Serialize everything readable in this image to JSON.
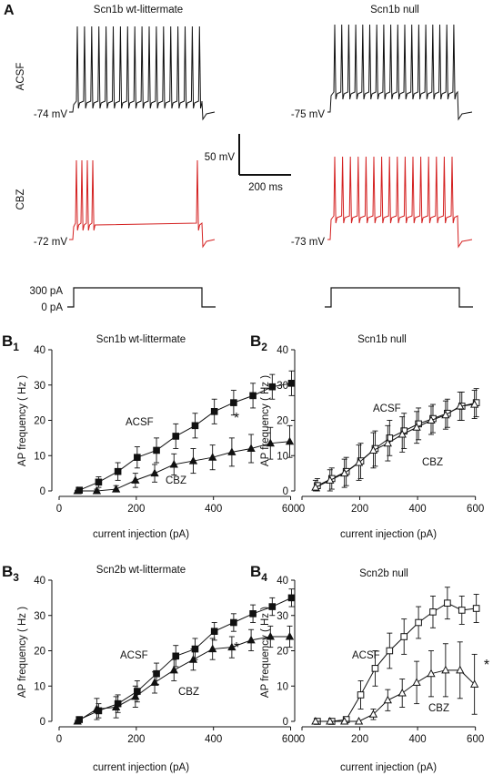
{
  "panel_a": {
    "label": "A",
    "titles": [
      "Scn1b wt-littermate",
      "Scn1b null"
    ],
    "rows": [
      "ACSF",
      "CBZ"
    ],
    "potentials": {
      "wt_acsf": "-74 mV",
      "null_acsf": "-75 mV",
      "wt_cbz": "-72 mV",
      "null_cbz": "-73 mV"
    },
    "scalebar": {
      "voltage": "50 mV",
      "time": "200 ms"
    },
    "stimulus": {
      "high": "300 pA",
      "low": "0 pA"
    },
    "colors": {
      "acsf": "#111111",
      "cbz": "#d42020"
    }
  },
  "chart_data": [
    {
      "type": "line",
      "panel": "B1",
      "title": "Scn1b wt-littermate",
      "xlabel": "current injection (pA)",
      "ylabel": "AP frequency ( Hz )",
      "xlim": [
        0,
        620
      ],
      "ylim": [
        0,
        40
      ],
      "xticks": [
        0,
        200,
        400,
        600
      ],
      "yticks": [
        0,
        10,
        20,
        30,
        40
      ],
      "annotation": "*",
      "x": [
        50,
        100,
        150,
        200,
        250,
        300,
        350,
        400,
        450,
        500,
        550,
        600
      ],
      "series": [
        {
          "name": "ACSF",
          "marker": "filled-square",
          "values": [
            0.2,
            2.5,
            5.5,
            9.5,
            11.5,
            15.5,
            18.5,
            22.5,
            25,
            27,
            29.5,
            30.5
          ],
          "errors": [
            0.5,
            1.5,
            2.5,
            3,
            3.5,
            3.5,
            3.5,
            3.5,
            3.5,
            3.5,
            3.5,
            3.5
          ]
        },
        {
          "name": "CBZ",
          "marker": "filled-triangle",
          "values": [
            0,
            0,
            0.5,
            3,
            5,
            7.5,
            8.5,
            9.5,
            11,
            12,
            13.5,
            14
          ],
          "errors": [
            0.2,
            0.5,
            1,
            2,
            2.5,
            3,
            3.5,
            3.5,
            4,
            4,
            4.5,
            4.5
          ]
        }
      ]
    },
    {
      "type": "line",
      "panel": "B2",
      "title": "Scn1b null",
      "xlabel": "current injection (pA)",
      "ylabel": "AP frequency ( Hz )",
      "xlim": [
        0,
        620
      ],
      "ylim": [
        0,
        40
      ],
      "xticks": [
        0,
        200,
        400,
        600
      ],
      "yticks": [
        0,
        10,
        20,
        30,
        40
      ],
      "annotation": "",
      "x": [
        50,
        100,
        150,
        200,
        250,
        300,
        350,
        400,
        450,
        500,
        550,
        600
      ],
      "series": [
        {
          "name": "ACSF",
          "marker": "open-square",
          "values": [
            1.5,
            3.5,
            5.5,
            8.5,
            12,
            15,
            17,
            19,
            20.5,
            22,
            24,
            25
          ],
          "errors": [
            2,
            3,
            4,
            5,
            5,
            5,
            5,
            4.5,
            4,
            4,
            4,
            4
          ]
        },
        {
          "name": "CBZ",
          "marker": "open-triangle",
          "values": [
            1,
            3,
            5,
            8,
            11.5,
            13.5,
            16,
            18,
            20,
            21.5,
            24,
            24.5
          ],
          "errors": [
            2,
            3,
            4,
            5,
            5,
            5,
            5,
            4.5,
            4,
            4,
            4,
            4
          ]
        }
      ]
    },
    {
      "type": "line",
      "panel": "B3",
      "title": "Scn2b wt-littermate",
      "xlabel": "current injection (pA)",
      "ylabel": "AP frequency ( Hz )",
      "xlim": [
        0,
        620
      ],
      "ylim": [
        0,
        40
      ],
      "xticks": [
        0,
        200,
        400,
        600
      ],
      "yticks": [
        0,
        10,
        20,
        30,
        40
      ],
      "annotation": "*",
      "x": [
        50,
        100,
        150,
        200,
        250,
        300,
        350,
        400,
        450,
        500,
        550,
        600
      ],
      "series": [
        {
          "name": "ACSF",
          "marker": "filled-square",
          "values": [
            0.5,
            3,
            5,
            8.5,
            13.5,
            18.5,
            20.5,
            25.5,
            28,
            30.5,
            32.5,
            35
          ],
          "errors": [
            0.5,
            2,
            2.5,
            3,
            3,
            3,
            3,
            2.5,
            2.5,
            2.5,
            2.5,
            2.5
          ]
        },
        {
          "name": "CBZ",
          "marker": "filled-triangle",
          "values": [
            0,
            3.5,
            4,
            7,
            11,
            14.5,
            17.5,
            20.5,
            21,
            23,
            24,
            24
          ],
          "errors": [
            0.3,
            3,
            3,
            3,
            3,
            3,
            3,
            3,
            3,
            3,
            3,
            3
          ]
        }
      ]
    },
    {
      "type": "line",
      "panel": "B4",
      "title": "Scn2b null",
      "xlabel": "current injection (pA)",
      "ylabel": "AP frequency ( Hz )",
      "xlim": [
        0,
        620
      ],
      "ylim": [
        0,
        40
      ],
      "xticks": [
        0,
        200,
        400,
        600
      ],
      "yticks": [
        0,
        10,
        20,
        30,
        40
      ],
      "annotation": "*",
      "x": [
        50,
        100,
        150,
        200,
        250,
        300,
        350,
        400,
        450,
        500,
        550,
        600
      ],
      "series": [
        {
          "name": "ACSF",
          "marker": "open-square",
          "values": [
            0,
            0,
            0.5,
            7.5,
            15,
            20,
            24,
            28,
            31,
            33.5,
            31.5,
            32
          ],
          "errors": [
            0,
            0,
            0.5,
            4,
            5,
            5,
            5,
            4.5,
            4.5,
            4.5,
            4,
            4
          ]
        },
        {
          "name": "CBZ",
          "marker": "open-triangle",
          "values": [
            0,
            0,
            0,
            0,
            2,
            6,
            8,
            11,
            13.5,
            14.5,
            14.5,
            10.5
          ],
          "errors": [
            0,
            0,
            0,
            0,
            1.5,
            3,
            4,
            6,
            6.5,
            7.5,
            8,
            8.5
          ]
        }
      ]
    }
  ]
}
